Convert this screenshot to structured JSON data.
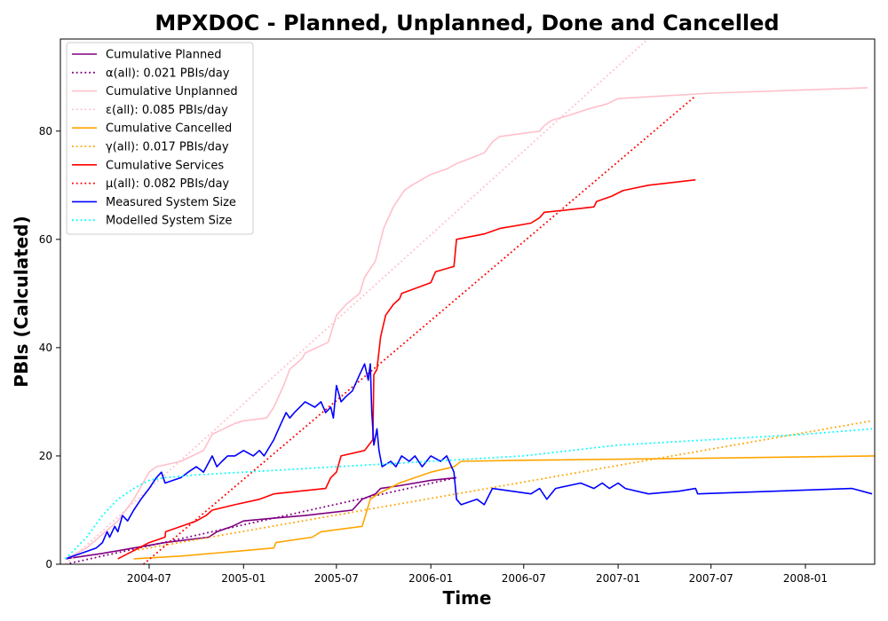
{
  "chart_data": {
    "type": "line",
    "title": "MPXDOC - Planned, Unplanned, Done  and Cancelled",
    "xlabel": "Time",
    "ylabel": "PBIs (Calculated)",
    "x_type": "date",
    "xlim": [
      "2004-01-10",
      "2008-05-15"
    ],
    "ylim": [
      0,
      97
    ],
    "x_ticks": [
      "2004-07",
      "2005-01",
      "2005-07",
      "2006-01",
      "2006-07",
      "2007-01",
      "2007-07",
      "2008-01"
    ],
    "y_ticks": [
      0,
      20,
      40,
      60,
      80
    ],
    "grid": false,
    "legend_position": "top-left",
    "series": [
      {
        "name": "Cumulative Planned",
        "style": "solid",
        "color": "#800080",
        "points": [
          [
            "2004-01-20",
            1
          ],
          [
            "2004-04-01",
            2
          ],
          [
            "2004-06-01",
            3
          ],
          [
            "2004-08-01",
            4
          ],
          [
            "2004-10-25",
            5
          ],
          [
            "2004-11-10",
            6
          ],
          [
            "2004-12-10",
            7
          ],
          [
            "2005-01-01",
            8
          ],
          [
            "2005-03-01",
            8.5
          ],
          [
            "2005-05-01",
            9
          ],
          [
            "2005-08-01",
            10
          ],
          [
            "2005-08-20",
            12
          ],
          [
            "2005-09-15",
            13
          ],
          [
            "2005-09-25",
            14
          ],
          [
            "2005-11-01",
            14.5
          ],
          [
            "2006-01-01",
            15.5
          ],
          [
            "2006-02-20",
            16
          ]
        ]
      },
      {
        "name": "α(all): 0.021 PBIs/day",
        "style": "dotted",
        "color": "#800080",
        "points": [
          [
            "2004-01-20",
            0
          ],
          [
            "2006-02-20",
            16
          ]
        ]
      },
      {
        "name": "Cumulative Unplanned",
        "style": "solid",
        "color": "#ffc0cb",
        "points": [
          [
            "2004-01-20",
            1
          ],
          [
            "2004-03-01",
            3
          ],
          [
            "2004-05-01",
            8
          ],
          [
            "2004-06-01",
            12
          ],
          [
            "2004-07-01",
            17
          ],
          [
            "2004-07-15",
            18
          ],
          [
            "2004-09-01",
            19
          ],
          [
            "2004-10-15",
            21
          ],
          [
            "2004-11-01",
            24
          ],
          [
            "2004-12-15",
            26
          ],
          [
            "2005-01-01",
            26.5
          ],
          [
            "2005-02-15",
            27
          ],
          [
            "2005-03-01",
            29
          ],
          [
            "2005-03-20",
            33
          ],
          [
            "2005-04-01",
            36
          ],
          [
            "2005-04-25",
            38
          ],
          [
            "2005-05-01",
            39
          ],
          [
            "2005-06-15",
            41
          ],
          [
            "2005-07-01",
            46
          ],
          [
            "2005-07-20",
            48
          ],
          [
            "2005-08-15",
            50
          ],
          [
            "2005-08-25",
            53
          ],
          [
            "2005-09-15",
            56
          ],
          [
            "2005-10-01",
            62
          ],
          [
            "2005-10-20",
            66
          ],
          [
            "2005-11-10",
            69
          ],
          [
            "2005-11-25",
            70
          ],
          [
            "2006-01-01",
            72
          ],
          [
            "2006-02-01",
            73
          ],
          [
            "2006-02-20",
            74
          ],
          [
            "2006-03-20",
            75
          ],
          [
            "2006-04-15",
            76
          ],
          [
            "2006-05-01",
            78
          ],
          [
            "2006-05-15",
            79
          ],
          [
            "2006-08-01",
            80
          ],
          [
            "2006-08-10",
            81
          ],
          [
            "2006-08-25",
            82
          ],
          [
            "2006-10-01",
            83
          ],
          [
            "2006-11-01",
            84
          ],
          [
            "2006-12-10",
            85
          ],
          [
            "2007-01-01",
            86
          ],
          [
            "2007-04-01",
            86.5
          ],
          [
            "2007-07-01",
            87
          ],
          [
            "2008-05-01",
            88
          ]
        ]
      },
      {
        "name": "ε(all): 0.085 PBIs/day",
        "style": "dotted",
        "color": "#ffc0cb",
        "points": [
          [
            "2004-01-20",
            0
          ],
          [
            "2007-02-28",
            97
          ]
        ]
      },
      {
        "name": "Cumulative Cancelled",
        "style": "solid",
        "color": "#ffa500",
        "points": [
          [
            "2004-06-01",
            1
          ],
          [
            "2004-09-01",
            1.5
          ],
          [
            "2005-01-01",
            2.5
          ],
          [
            "2005-03-01",
            3
          ],
          [
            "2005-03-05",
            4
          ],
          [
            "2005-05-15",
            5
          ],
          [
            "2005-06-01",
            6
          ],
          [
            "2005-08-20",
            7
          ],
          [
            "2005-09-05",
            12
          ],
          [
            "2005-09-20",
            13
          ],
          [
            "2005-11-01",
            15
          ],
          [
            "2005-12-01",
            16
          ],
          [
            "2006-01-01",
            17
          ],
          [
            "2006-02-15",
            18
          ],
          [
            "2006-03-01",
            19
          ],
          [
            "2006-07-01",
            19.2
          ],
          [
            "2007-07-01",
            19.6
          ],
          [
            "2008-05-15",
            20
          ]
        ]
      },
      {
        "name": "γ(all): 0.017 PBIs/day",
        "style": "dotted",
        "color": "#ffa500",
        "points": [
          [
            "2004-06-01",
            2.5
          ],
          [
            "2008-05-10",
            26.5
          ]
        ]
      },
      {
        "name": "Cumulative Services",
        "style": "solid",
        "color": "#ff0000",
        "points": [
          [
            "2004-05-01",
            1
          ],
          [
            "2004-06-01",
            2.5
          ],
          [
            "2004-07-01",
            4
          ],
          [
            "2004-08-01",
            5
          ],
          [
            "2004-08-02",
            6
          ],
          [
            "2004-10-01",
            8
          ],
          [
            "2004-10-20",
            9
          ],
          [
            "2004-11-01",
            10
          ],
          [
            "2004-12-15",
            11
          ],
          [
            "2005-02-01",
            12
          ],
          [
            "2005-03-01",
            13
          ],
          [
            "2005-06-10",
            14
          ],
          [
            "2005-06-20",
            16
          ],
          [
            "2005-07-01",
            17
          ],
          [
            "2005-07-10",
            20
          ],
          [
            "2005-08-25",
            21
          ],
          [
            "2005-09-10",
            23
          ],
          [
            "2005-09-12",
            35
          ],
          [
            "2005-09-18",
            36
          ],
          [
            "2005-09-25",
            42
          ],
          [
            "2005-10-05",
            46
          ],
          [
            "2005-10-20",
            48
          ],
          [
            "2005-11-01",
            49
          ],
          [
            "2005-11-05",
            50
          ],
          [
            "2006-01-01",
            52
          ],
          [
            "2006-01-10",
            54
          ],
          [
            "2006-02-15",
            55
          ],
          [
            "2006-02-20",
            60
          ],
          [
            "2006-04-15",
            61
          ],
          [
            "2006-05-15",
            62
          ],
          [
            "2006-07-15",
            63
          ],
          [
            "2006-08-01",
            64
          ],
          [
            "2006-08-10",
            65
          ],
          [
            "2006-10-01",
            65.5
          ],
          [
            "2006-11-15",
            66
          ],
          [
            "2006-11-20",
            67
          ],
          [
            "2006-12-20",
            68
          ],
          [
            "2007-01-10",
            69
          ],
          [
            "2007-03-01",
            70
          ],
          [
            "2007-06-01",
            71
          ]
        ]
      },
      {
        "name": "μ(all): 0.082 PBIs/day",
        "style": "dotted",
        "color": "#ff0000",
        "points": [
          [
            "2004-06-20",
            0
          ],
          [
            "2007-06-01",
            86.5
          ]
        ]
      },
      {
        "name": "Measured System Size",
        "style": "solid",
        "color": "#0000ff",
        "points": [
          [
            "2004-01-20",
            1
          ],
          [
            "2004-03-20",
            3
          ],
          [
            "2004-04-01",
            4
          ],
          [
            "2004-04-10",
            6
          ],
          [
            "2004-04-15",
            5
          ],
          [
            "2004-04-25",
            7
          ],
          [
            "2004-05-01",
            6
          ],
          [
            "2004-05-10",
            9
          ],
          [
            "2004-05-20",
            8
          ],
          [
            "2004-06-01",
            10
          ],
          [
            "2004-06-15",
            12
          ],
          [
            "2004-07-01",
            14
          ],
          [
            "2004-07-15",
            16
          ],
          [
            "2004-07-25",
            17
          ],
          [
            "2004-08-01",
            15
          ],
          [
            "2004-09-01",
            16
          ],
          [
            "2004-09-15",
            17
          ],
          [
            "2004-10-01",
            18
          ],
          [
            "2004-10-15",
            17
          ],
          [
            "2004-11-01",
            20
          ],
          [
            "2004-11-10",
            18
          ],
          [
            "2004-11-20",
            19
          ],
          [
            "2004-12-01",
            20
          ],
          [
            "2004-12-15",
            20
          ],
          [
            "2005-01-01",
            21
          ],
          [
            "2005-01-20",
            20
          ],
          [
            "2005-02-01",
            21
          ],
          [
            "2005-02-10",
            20
          ],
          [
            "2005-03-01",
            23
          ],
          [
            "2005-03-15",
            26
          ],
          [
            "2005-03-25",
            28
          ],
          [
            "2005-04-01",
            27
          ],
          [
            "2005-04-10",
            28
          ],
          [
            "2005-05-01",
            30
          ],
          [
            "2005-05-20",
            29
          ],
          [
            "2005-06-01",
            30
          ],
          [
            "2005-06-10",
            28
          ],
          [
            "2005-06-20",
            29
          ],
          [
            "2005-06-25",
            27
          ],
          [
            "2005-07-01",
            33
          ],
          [
            "2005-07-10",
            30
          ],
          [
            "2005-07-20",
            31
          ],
          [
            "2005-08-01",
            32
          ],
          [
            "2005-08-15",
            35
          ],
          [
            "2005-08-25",
            37
          ],
          [
            "2005-09-01",
            34
          ],
          [
            "2005-09-05",
            37
          ],
          [
            "2005-09-08",
            28
          ],
          [
            "2005-09-12",
            22
          ],
          [
            "2005-09-18",
            25
          ],
          [
            "2005-09-22",
            21
          ],
          [
            "2005-09-28",
            18
          ],
          [
            "2005-10-15",
            19
          ],
          [
            "2005-10-25",
            18
          ],
          [
            "2005-11-05",
            20
          ],
          [
            "2005-11-20",
            19
          ],
          [
            "2005-12-01",
            20
          ],
          [
            "2005-12-15",
            18
          ],
          [
            "2006-01-01",
            20
          ],
          [
            "2006-01-20",
            19
          ],
          [
            "2006-02-01",
            20
          ],
          [
            "2006-02-15",
            17
          ],
          [
            "2006-02-20",
            12
          ],
          [
            "2006-03-01",
            11
          ],
          [
            "2006-04-01",
            12
          ],
          [
            "2006-04-15",
            11
          ],
          [
            "2006-05-01",
            14
          ],
          [
            "2006-07-15",
            13
          ],
          [
            "2006-08-01",
            14
          ],
          [
            "2006-08-15",
            12
          ],
          [
            "2006-09-01",
            14
          ],
          [
            "2006-10-20",
            15
          ],
          [
            "2006-11-15",
            14
          ],
          [
            "2006-12-01",
            15
          ],
          [
            "2006-12-15",
            14
          ],
          [
            "2007-01-01",
            15
          ],
          [
            "2007-01-15",
            14
          ],
          [
            "2007-03-01",
            13
          ],
          [
            "2007-05-01",
            13.5
          ],
          [
            "2007-06-01",
            14
          ],
          [
            "2007-06-05",
            13
          ],
          [
            "2008-04-01",
            14
          ],
          [
            "2008-05-10",
            13
          ]
        ]
      },
      {
        "name": "Modelled System Size",
        "style": "dotted",
        "color": "#00ffff",
        "points": [
          [
            "2004-01-20",
            1
          ],
          [
            "2004-03-01",
            5
          ],
          [
            "2004-04-01",
            9
          ],
          [
            "2004-05-01",
            12
          ],
          [
            "2004-06-01",
            14
          ],
          [
            "2004-07-01",
            15.5
          ],
          [
            "2004-08-01",
            16
          ],
          [
            "2004-10-01",
            16.5
          ],
          [
            "2005-01-01",
            17
          ],
          [
            "2005-04-01",
            17.5
          ],
          [
            "2005-07-01",
            18
          ],
          [
            "2005-10-01",
            18.5
          ],
          [
            "2006-01-01",
            19
          ],
          [
            "2006-04-01",
            19.5
          ],
          [
            "2006-07-01",
            20
          ],
          [
            "2006-10-01",
            21
          ],
          [
            "2007-01-01",
            22
          ],
          [
            "2007-04-01",
            22.5
          ],
          [
            "2007-07-01",
            23
          ],
          [
            "2007-10-01",
            23.5
          ],
          [
            "2008-01-01",
            24
          ],
          [
            "2008-05-10",
            25
          ]
        ]
      }
    ]
  }
}
